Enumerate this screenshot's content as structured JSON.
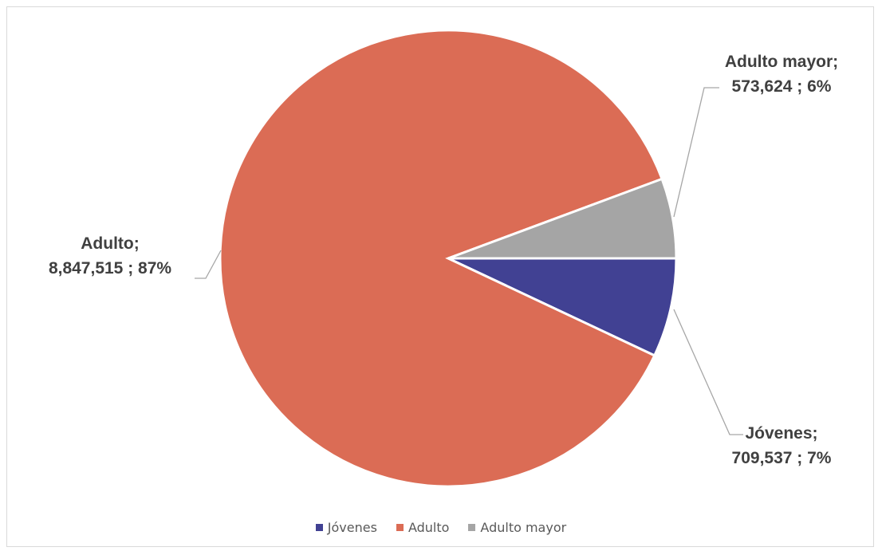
{
  "chart_data": {
    "type": "pie",
    "title": "",
    "categories": [
      "Jóvenes",
      "Adulto",
      "Adulto mayor"
    ],
    "values": [
      709537,
      8847515,
      573624
    ],
    "percentages": [
      "7%",
      "87%",
      "6%"
    ],
    "colors": [
      "#414193",
      "#DB6C55",
      "#A5A5A5"
    ],
    "legend_position": "bottom",
    "labels": [
      {
        "line1": "Jóvenes;",
        "line2": "709,537 ; 7%"
      },
      {
        "line1": "Adulto;",
        "line2": "8,847,515 ; 87%"
      },
      {
        "line1": "Adulto mayor;",
        "line2": "573,624 ; 6%"
      }
    ]
  }
}
